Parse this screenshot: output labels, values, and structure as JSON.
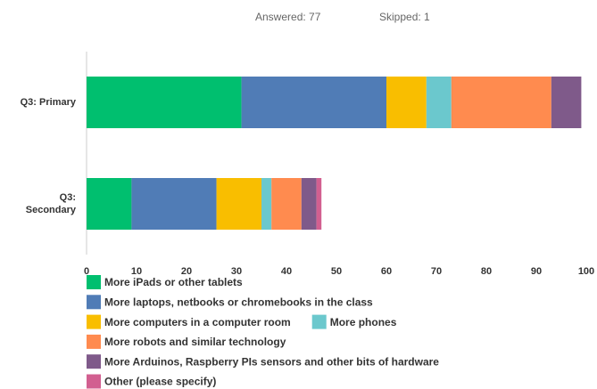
{
  "chart_data": {
    "type": "stacked_barh",
    "subtitle": [
      "Answered: 77",
      "Skipped: 1"
    ],
    "categories": [
      "Q3: Primary",
      "Q3: Secondary"
    ],
    "series": [
      {
        "name": "More iPads or other tablets",
        "color": "#00bf6f",
        "values": [
          31,
          9
        ]
      },
      {
        "name": "More laptops, netbooks or chromebooks in the class",
        "color": "#507cb6",
        "values": [
          29,
          17
        ]
      },
      {
        "name": "More computers in a computer room",
        "color": "#f9be00",
        "values": [
          8,
          9
        ]
      },
      {
        "name": "More phones",
        "color": "#6bc8cd",
        "values": [
          5,
          2
        ]
      },
      {
        "name": "More robots and similar technology",
        "color": "#ff8b4f",
        "values": [
          20,
          6
        ]
      },
      {
        "name": "More Arduinos, Raspberry PIs sensors and other bits of hardware",
        "color": "#7f5a8a",
        "values": [
          6,
          3
        ]
      },
      {
        "name": "Other (please specify)",
        "color": "#d25f90",
        "values": [
          0,
          1
        ]
      }
    ],
    "xlim": [
      0,
      100
    ],
    "xticks": [
      0,
      10,
      20,
      30,
      40,
      50,
      60,
      70,
      80,
      90,
      100
    ],
    "grid": false
  }
}
